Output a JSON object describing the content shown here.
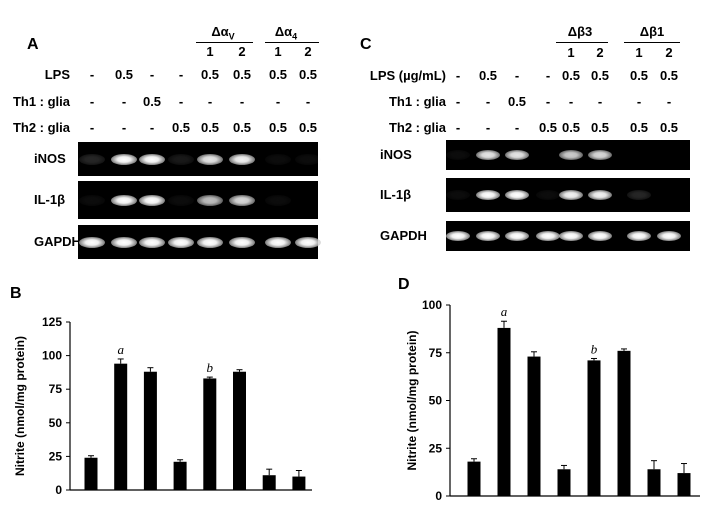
{
  "panels": {
    "A": "A",
    "B": "B",
    "C": "C",
    "D": "D"
  },
  "panel_a": {
    "groups": [
      {
        "label": "Δα",
        "sub": "V",
        "lanes": [
          "1",
          "2"
        ]
      },
      {
        "label": "Δα",
        "sub": "4",
        "lanes": [
          "1",
          "2"
        ]
      }
    ],
    "rows": [
      {
        "label": "LPS",
        "values": [
          "-",
          "0.5",
          "-",
          "-",
          "0.5",
          "0.5",
          "0.5",
          "0.5"
        ]
      },
      {
        "label": "Th1 : glia",
        "values": [
          "-",
          "-",
          "0.5",
          "-",
          "-",
          "-",
          "-",
          "-"
        ]
      },
      {
        "label": "Th2 : glia",
        "values": [
          "-",
          "-",
          "-",
          "0.5",
          "0.5",
          "0.5",
          "0.5",
          "0.5"
        ]
      }
    ],
    "gels": [
      {
        "label": "iNOS",
        "intensity": [
          0.15,
          1,
          1,
          0.1,
          0.9,
          0.95,
          0.05,
          0.05
        ]
      },
      {
        "label": "IL-1β",
        "intensity": [
          0.05,
          1,
          1,
          0.05,
          0.75,
          0.85,
          0.05,
          0.0
        ]
      },
      {
        "label": "GAPDH",
        "intensity": [
          1,
          1,
          1,
          1,
          1,
          1,
          1,
          1
        ]
      }
    ]
  },
  "panel_c": {
    "groups": [
      {
        "label": "Δβ3",
        "sub": "",
        "lanes": [
          "1",
          "2"
        ]
      },
      {
        "label": "Δβ1",
        "sub": "",
        "lanes": [
          "1",
          "2"
        ]
      }
    ],
    "rows": [
      {
        "label": "LPS  (µg/mL)",
        "values": [
          "-",
          "0.5",
          "-",
          "-",
          "0.5",
          "0.5",
          "0.5",
          "0.5"
        ]
      },
      {
        "label": "Th1 : glia",
        "values": [
          "-",
          "-",
          "0.5",
          "-",
          "-",
          "-",
          "-",
          "-"
        ]
      },
      {
        "label": "Th2 : glia",
        "values": [
          "-",
          "-",
          "-",
          "0.5",
          "0.5",
          "0.5",
          "0.5",
          "0.5"
        ]
      }
    ],
    "gels": [
      {
        "label": "iNOS",
        "intensity": [
          0.05,
          0.9,
          0.9,
          0.0,
          0.8,
          0.85,
          0.0,
          0.0
        ]
      },
      {
        "label": "IL-1β",
        "intensity": [
          0.05,
          1,
          1,
          0.05,
          0.95,
          0.95,
          0.15,
          0.0
        ]
      },
      {
        "label": "GAPDH",
        "intensity": [
          1,
          1,
          1,
          1,
          1,
          1,
          1,
          1
        ]
      }
    ]
  },
  "chart_data": [
    {
      "type": "bar",
      "panel": "B",
      "ylabel": "Nitrite (nmol/mg protein)",
      "ylim": [
        0,
        125
      ],
      "yticks": [
        0,
        25,
        50,
        75,
        100,
        125
      ],
      "values": [
        24,
        94,
        88,
        21,
        83,
        88,
        11,
        10
      ],
      "errors": [
        1.5,
        3.5,
        3,
        1.5,
        1,
        1.5,
        4.5,
        4.5
      ],
      "annotations": [
        {
          "bar": 1,
          "text": "a"
        },
        {
          "bar": 4,
          "text": "b"
        }
      ]
    },
    {
      "type": "bar",
      "panel": "D",
      "ylabel": "Nitrite (nmol/mg protein)",
      "ylim": [
        0,
        100
      ],
      "yticks": [
        0,
        25,
        50,
        75,
        100
      ],
      "values": [
        18,
        88,
        73,
        14,
        71,
        76,
        14,
        12
      ],
      "errors": [
        1.5,
        3.5,
        2.5,
        2,
        1,
        1,
        4.5,
        5
      ],
      "annotations": [
        {
          "bar": 1,
          "text": "a"
        },
        {
          "bar": 4,
          "text": "b"
        }
      ]
    }
  ]
}
